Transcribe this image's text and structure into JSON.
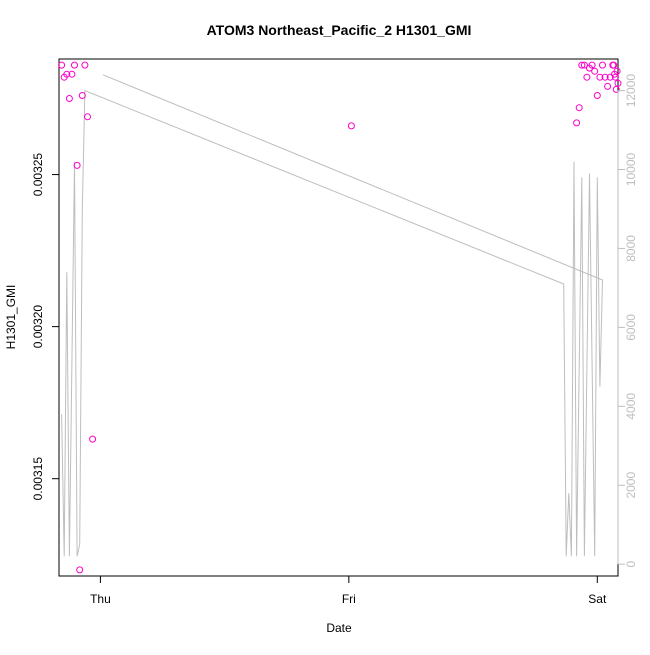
{
  "chart_data": {
    "type": "scatter",
    "title": "ATOM3 Northeast_Pacific_2 H1301_GMI",
    "xlabel": "Date",
    "ylabel": "H1301_GMI",
    "x_ticks": [
      "Thu",
      "Fri",
      "Sat"
    ],
    "x_range": [
      "Wed 20:00",
      "Sat 02:00"
    ],
    "y_ticks": [
      "0.00315",
      "0.00320",
      "0.00325"
    ],
    "y_lim": [
      0.003118,
      0.003288
    ],
    "y2_ticks": [
      "0",
      "2000",
      "4000",
      "6000",
      "8000",
      "10000",
      "12000"
    ],
    "y2_lim": [
      -300,
      12800
    ],
    "grid": false,
    "colors": {
      "points": "#ff00cc",
      "line": "#bebebe",
      "right_axis": "#bebebe",
      "frame": "#000000"
    },
    "series": [
      {
        "role": "points",
        "axis": "left",
        "points": [
          {
            "x": "Wed 20:15",
            "y": 0.003286
          },
          {
            "x": "Wed 20:30",
            "y": 0.003282
          },
          {
            "x": "Wed 20:45",
            "y": 0.003283
          },
          {
            "x": "Wed 21:00",
            "y": 0.003275
          },
          {
            "x": "Wed 21:15",
            "y": 0.003283
          },
          {
            "x": "Wed 21:30",
            "y": 0.003286
          },
          {
            "x": "Wed 21:45",
            "y": 0.003253
          },
          {
            "x": "Wed 22:00",
            "y": 0.00312
          },
          {
            "x": "Wed 22:15",
            "y": 0.003276
          },
          {
            "x": "Wed 22:30",
            "y": 0.003286
          },
          {
            "x": "Wed 22:45",
            "y": 0.003269
          },
          {
            "x": "Wed 23:15",
            "y": 0.003163
          },
          {
            "x": "Fri 00:15",
            "y": 0.003266
          },
          {
            "x": "Fri 22:00",
            "y": 0.003267
          },
          {
            "x": "Fri 22:15",
            "y": 0.003272
          },
          {
            "x": "Fri 22:30",
            "y": 0.003286
          },
          {
            "x": "Fri 22:45",
            "y": 0.003286
          },
          {
            "x": "Fri 23:00",
            "y": 0.003282
          },
          {
            "x": "Fri 23:15",
            "y": 0.003285
          },
          {
            "x": "Fri 23:30",
            "y": 0.003286
          },
          {
            "x": "Fri 23:45",
            "y": 0.003284
          },
          {
            "x": "Sat 00:00",
            "y": 0.003276
          },
          {
            "x": "Sat 00:15",
            "y": 0.003282
          },
          {
            "x": "Sat 00:30",
            "y": 0.003286
          },
          {
            "x": "Sat 00:45",
            "y": 0.003282
          },
          {
            "x": "Sat 01:00",
            "y": 0.003279
          },
          {
            "x": "Sat 01:15",
            "y": 0.003282
          },
          {
            "x": "Sat 01:30",
            "y": 0.003286
          },
          {
            "x": "Sat 01:35",
            "y": 0.003286
          },
          {
            "x": "Sat 01:40",
            "y": 0.003283
          },
          {
            "x": "Sat 01:45",
            "y": 0.003282
          },
          {
            "x": "Sat 01:50",
            "y": 0.003278
          },
          {
            "x": "Sat 01:55",
            "y": 0.003284
          },
          {
            "x": "Sat 02:00",
            "y": 0.00328
          }
        ]
      },
      {
        "role": "line",
        "axis": "right",
        "points": [
          {
            "x": "Wed 20:15",
            "y": 3800
          },
          {
            "x": "Wed 20:30",
            "y": 200
          },
          {
            "x": "Wed 20:45",
            "y": 7400
          },
          {
            "x": "Wed 21:00",
            "y": 200
          },
          {
            "x": "Wed 21:30",
            "y": 10200
          },
          {
            "x": "Wed 21:45",
            "y": 200
          },
          {
            "x": "Wed 22:00",
            "y": 500
          },
          {
            "x": "Wed 22:15",
            "y": 9000
          },
          {
            "x": "Wed 22:30",
            "y": 12000
          },
          {
            "x": "Fri 20:45",
            "y": 7100
          },
          {
            "x": "Fri 21:00",
            "y": 200
          },
          {
            "x": "Fri 21:15",
            "y": 1800
          },
          {
            "x": "Fri 21:30",
            "y": 200
          },
          {
            "x": "Fri 21:45",
            "y": 10200
          },
          {
            "x": "Fri 22:00",
            "y": 200
          },
          {
            "x": "Fri 22:30",
            "y": 9800
          },
          {
            "x": "Fri 22:45",
            "y": 200
          },
          {
            "x": "Fri 23:15",
            "y": 9900
          },
          {
            "x": "Fri 23:45",
            "y": 200
          },
          {
            "x": "Sat 00:00",
            "y": 9800
          },
          {
            "x": "Sat 00:15",
            "y": 4500
          },
          {
            "x": "Sat 00:30",
            "y": 7200
          },
          {
            "x": "Thu 00:15",
            "y": 12400
          }
        ]
      }
    ]
  }
}
